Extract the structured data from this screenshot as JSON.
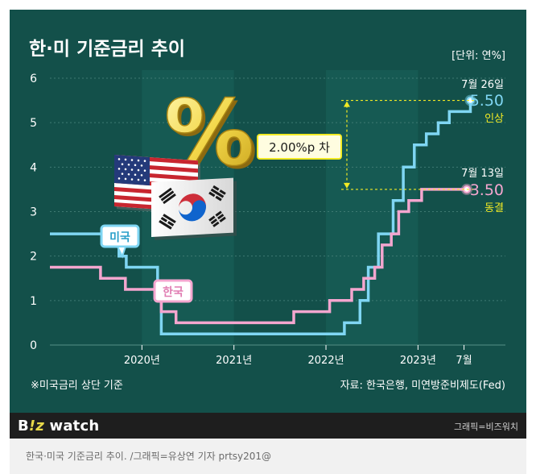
{
  "title": "한·미 기준금리 추이",
  "unit": "[단위: 연%]",
  "note": "※미국금리 상단 기준",
  "source": "자료: 한국은행, 미연방준비제도(Fed)",
  "brand": {
    "text": "watch",
    "prefix": "B",
    "mark": "!z"
  },
  "credit": "그래픽=비즈워치",
  "caption": "한국·미국 기준금리 추이. /그래픽=유상연 기자 prtsy201@",
  "colors": {
    "background": "#13504a",
    "band": "#165a53",
    "us": "#7fd6f3",
    "kr": "#f4a6cf",
    "gap": "#f2ea24"
  },
  "icons": [
    "percent-icon",
    "us-flag-icon",
    "korea-flag-icon"
  ],
  "annotations": {
    "gap": "2.00%p 차",
    "us": {
      "date": "7월 26일",
      "rate": "5.50",
      "status": "인상"
    },
    "kr": {
      "date": "7월 13일",
      "rate": "3.50",
      "status": "동결"
    }
  },
  "chart_data": {
    "type": "line",
    "step": true,
    "xlim": [
      2019.0,
      2023.95
    ],
    "ylim": [
      0,
      6
    ],
    "yticks": [
      "0",
      "1",
      "2",
      "3",
      "4",
      "5",
      "6"
    ],
    "xticks": [
      {
        "x": 2020.0,
        "label": "2020년"
      },
      {
        "x": 2021.0,
        "label": "2021년"
      },
      {
        "x": 2022.0,
        "label": "2022년"
      },
      {
        "x": 2023.0,
        "label": "2023년"
      },
      {
        "x": 2023.5,
        "label": "7월"
      }
    ],
    "series": [
      {
        "name": "미국",
        "color": "#7fd6f3",
        "points": [
          [
            2019.0,
            2.5
          ],
          [
            2019.58,
            2.5
          ],
          [
            2019.58,
            2.25
          ],
          [
            2019.75,
            2.25
          ],
          [
            2019.75,
            2.0
          ],
          [
            2019.83,
            2.0
          ],
          [
            2019.83,
            1.75
          ],
          [
            2020.17,
            1.75
          ],
          [
            2020.17,
            1.25
          ],
          [
            2020.21,
            1.25
          ],
          [
            2020.21,
            0.25
          ],
          [
            2022.2,
            0.25
          ],
          [
            2022.2,
            0.5
          ],
          [
            2022.37,
            0.5
          ],
          [
            2022.37,
            1.0
          ],
          [
            2022.46,
            1.0
          ],
          [
            2022.46,
            1.75
          ],
          [
            2022.57,
            1.75
          ],
          [
            2022.57,
            2.5
          ],
          [
            2022.73,
            2.5
          ],
          [
            2022.73,
            3.25
          ],
          [
            2022.84,
            3.25
          ],
          [
            2022.84,
            4.0
          ],
          [
            2022.96,
            4.0
          ],
          [
            2022.96,
            4.5
          ],
          [
            2023.09,
            4.5
          ],
          [
            2023.09,
            4.75
          ],
          [
            2023.22,
            4.75
          ],
          [
            2023.22,
            5.0
          ],
          [
            2023.34,
            5.0
          ],
          [
            2023.34,
            5.25
          ],
          [
            2023.57,
            5.25
          ],
          [
            2023.57,
            5.5
          ]
        ]
      },
      {
        "name": "한국",
        "color": "#f4a6cf",
        "points": [
          [
            2019.0,
            1.75
          ],
          [
            2019.55,
            1.75
          ],
          [
            2019.55,
            1.5
          ],
          [
            2019.82,
            1.5
          ],
          [
            2019.82,
            1.25
          ],
          [
            2020.21,
            1.25
          ],
          [
            2020.21,
            0.75
          ],
          [
            2020.37,
            0.75
          ],
          [
            2020.37,
            0.5
          ],
          [
            2021.65,
            0.5
          ],
          [
            2021.65,
            0.75
          ],
          [
            2021.9,
            0.75
          ],
          [
            2022.04,
            0.75
          ],
          [
            2022.04,
            1.0
          ],
          [
            2022.28,
            1.0
          ],
          [
            2022.28,
            1.25
          ],
          [
            2022.41,
            1.25
          ],
          [
            2022.41,
            1.5
          ],
          [
            2022.53,
            1.5
          ],
          [
            2022.53,
            1.75
          ],
          [
            2022.61,
            1.75
          ],
          [
            2022.61,
            2.25
          ],
          [
            2022.71,
            2.25
          ],
          [
            2022.71,
            2.5
          ],
          [
            2022.79,
            2.5
          ],
          [
            2022.79,
            3.0
          ],
          [
            2022.9,
            3.0
          ],
          [
            2022.9,
            3.25
          ],
          [
            2023.04,
            3.25
          ],
          [
            2023.04,
            3.5
          ],
          [
            2023.53,
            3.5
          ]
        ]
      }
    ]
  }
}
